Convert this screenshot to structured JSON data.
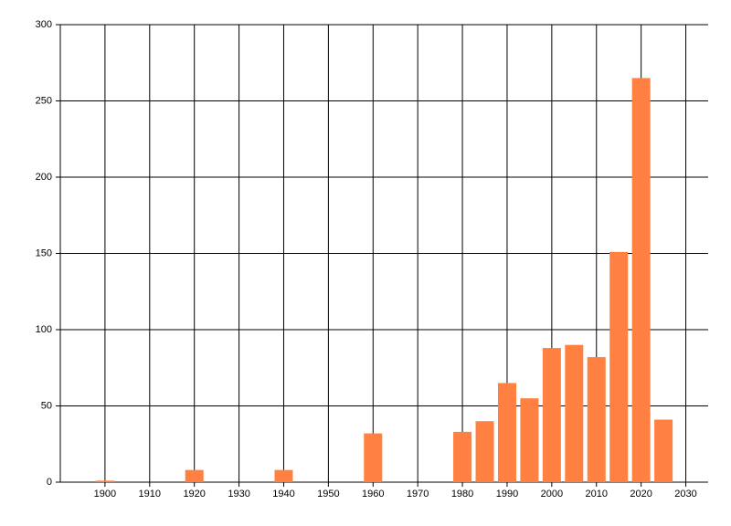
{
  "chart_data": {
    "type": "bar",
    "x": [
      1900,
      1920,
      1940,
      1960,
      1980,
      1985,
      1990,
      1995,
      2000,
      2005,
      2010,
      2015,
      2020,
      2025
    ],
    "values": [
      1,
      8,
      8,
      32,
      33,
      40,
      65,
      55,
      88,
      90,
      82,
      151,
      265,
      41
    ],
    "color": "#ff8040",
    "xlim": [
      1890,
      2035
    ],
    "xticks": [
      1900,
      1910,
      1920,
      1930,
      1940,
      1950,
      1960,
      1970,
      1980,
      1990,
      2000,
      2010,
      2020,
      2030
    ],
    "ylim": [
      0,
      300
    ],
    "yticks": [
      0,
      50,
      100,
      150,
      200,
      250,
      300
    ],
    "grid": true
  }
}
